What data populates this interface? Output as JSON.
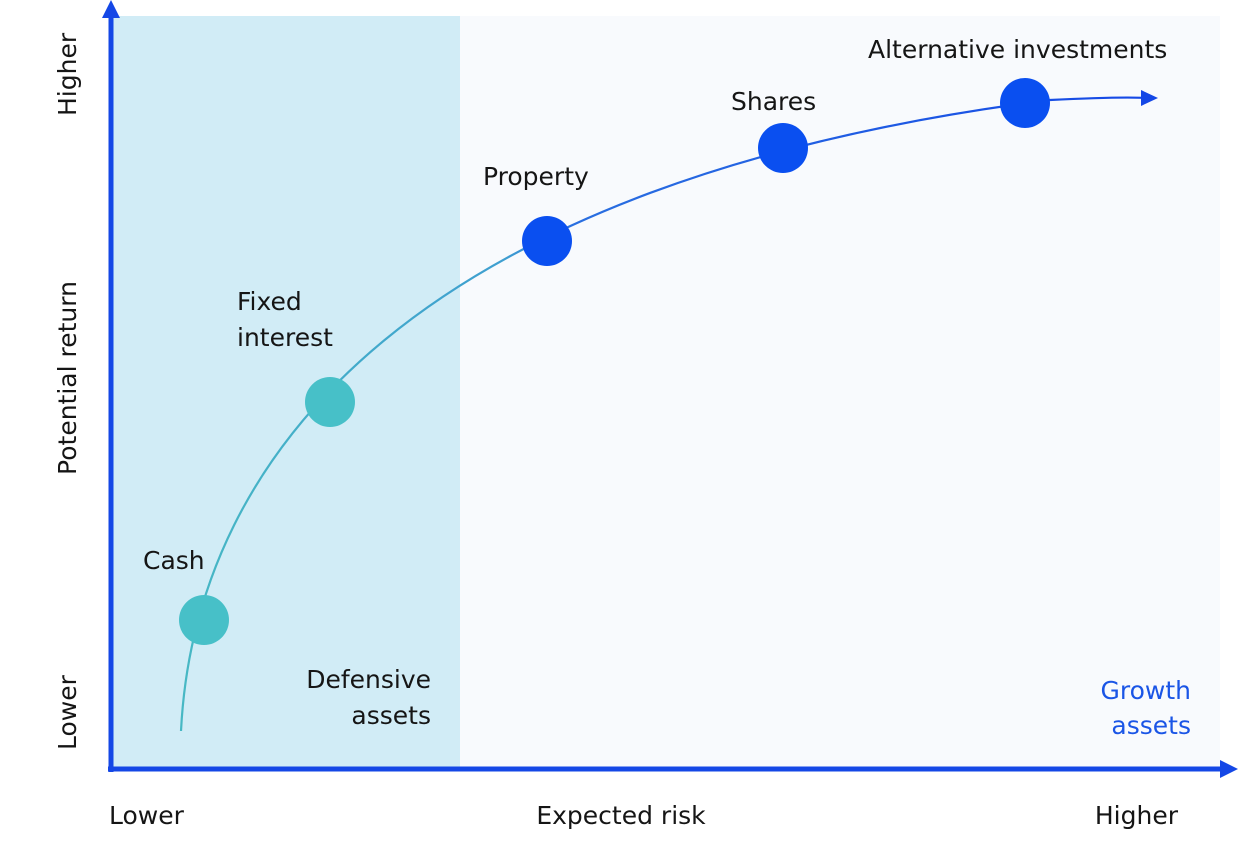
{
  "axes": {
    "y_title": "Potential return",
    "y_low": "Lower",
    "y_high": "Higher",
    "x_title": "Expected risk",
    "x_low": "Lower",
    "x_high": "Higher"
  },
  "zones": {
    "defensive": {
      "line1": "Defensive",
      "line2": "assets",
      "color": "#d1ecf6"
    },
    "growth": {
      "line1": "Growth",
      "line2": "assets",
      "color": "#f8fafd",
      "text_color": "#1a55e6"
    }
  },
  "assets": [
    {
      "name": "Cash",
      "group": "defensive",
      "color": "#47c0c8"
    },
    {
      "name": "Fixed interest",
      "line1": "Fixed",
      "line2": "interest",
      "group": "defensive",
      "color": "#47c0c8"
    },
    {
      "name": "Property",
      "group": "growth",
      "color": "#0a4ff0"
    },
    {
      "name": "Shares",
      "group": "growth",
      "color": "#0a4ff0"
    },
    {
      "name": "Alternative investments",
      "group": "growth",
      "color": "#0a4ff0"
    }
  ],
  "colors": {
    "axis": "#1447e6",
    "curve_defensive": "#47b8c4",
    "curve_growth": "#1447e6"
  }
}
